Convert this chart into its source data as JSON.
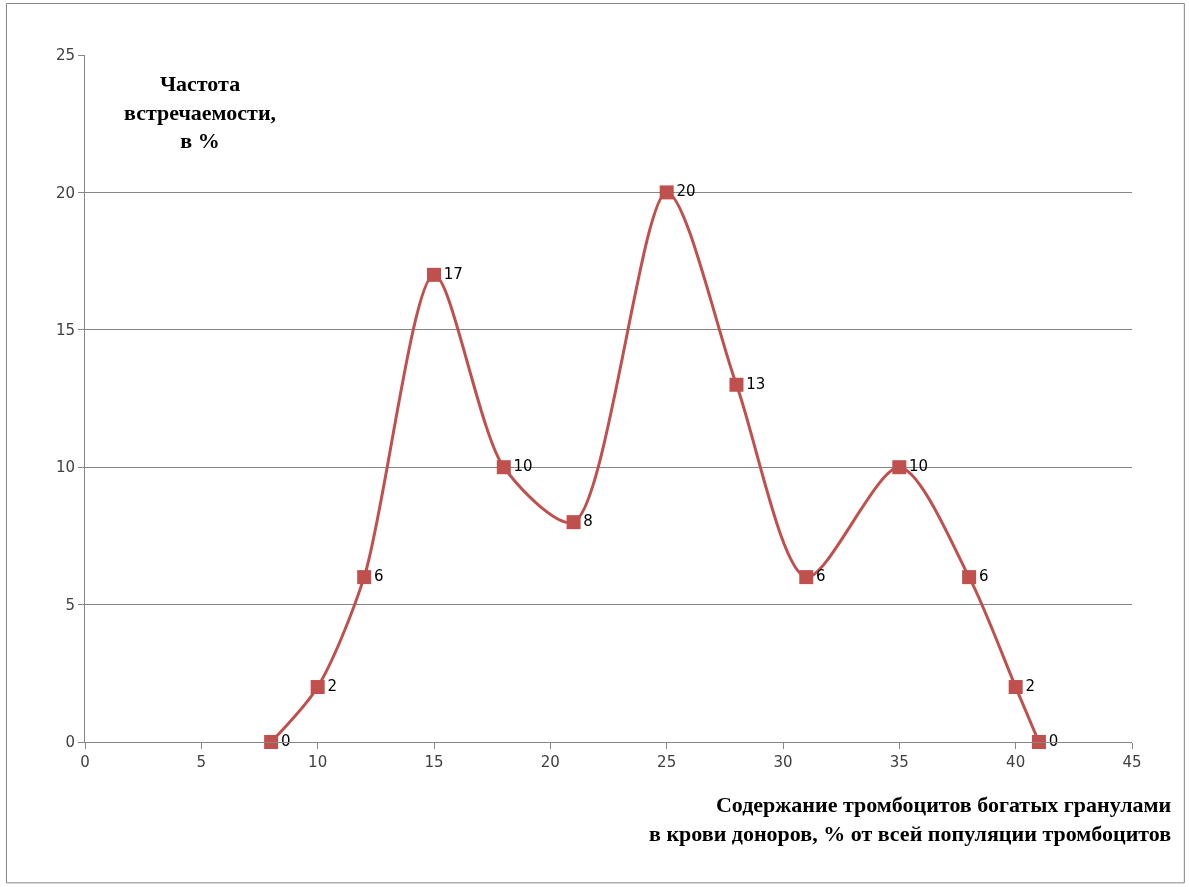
{
  "chart_data": {
    "type": "line",
    "xlabel": "Содержание тромбоцитов богатых гранулами\nв крови доноров, % от всей популяции тромбоцитов",
    "ylabel": "Частота\nвстречаемости,\nв %",
    "x": [
      8,
      10,
      12,
      15,
      18,
      21,
      25,
      28,
      31,
      35,
      38,
      40,
      41
    ],
    "series": [
      {
        "color": "#c0504d",
        "values": [
          0,
          2,
          6,
          17,
          10,
          8,
          20,
          13,
          6,
          10,
          6,
          2,
          0
        ]
      }
    ],
    "xlim": [
      0,
      45
    ],
    "xticks": [
      0,
      5,
      10,
      15,
      20,
      25,
      30,
      35,
      40,
      45
    ],
    "ylim": [
      0,
      25
    ],
    "yticks": [
      0,
      5,
      10,
      15,
      20,
      25
    ],
    "grid": "y",
    "marker": "square",
    "line_style": "solid",
    "data_labels": true
  }
}
